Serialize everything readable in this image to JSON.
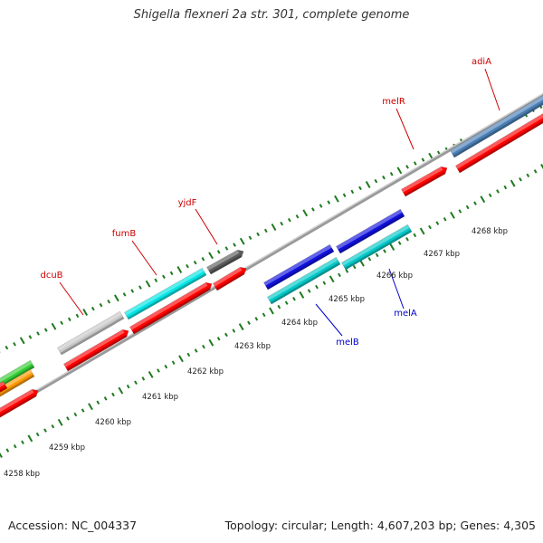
{
  "title": "Shigella flexneri 2a str. 301, complete genome",
  "footer": {
    "accession": "Accession: NC_004337",
    "summary": "Topology: circular; Length: 4,607,203 bp; Genes: 4,305"
  },
  "ruler": {
    "unit": "kbp",
    "labels": [
      "4258 kbp",
      "4259 kbp",
      "4260 kbp",
      "4261 kbp",
      "4262 kbp",
      "4263 kbp",
      "4264 kbp",
      "4265 kbp",
      "4266 kbp",
      "4267 kbp",
      "4268 kbp"
    ]
  },
  "colors": {
    "backbone": "#9a9a9a",
    "tick": "#1e7a1e",
    "ruler_text": "#222222",
    "forward_label": "#cc0000",
    "reverse_label": "#0000cc",
    "cds": "#ff0000"
  },
  "genes_forward": [
    {
      "name": "dcuB",
      "color": "#c8c8c8"
    },
    {
      "name": "fumB",
      "color": "#00e5e5"
    },
    {
      "name": "yjdF",
      "color": "#5a5a5a"
    },
    {
      "name": "melR",
      "color": "#ff0000"
    },
    {
      "name": "adiA",
      "color": "#4a7fb5"
    }
  ],
  "genes_reverse": [
    {
      "name": "melB",
      "color": "#1010dd"
    },
    {
      "name": "melA",
      "color": "#00c8c8"
    }
  ],
  "unlabeled_features": [
    "#33cc33",
    "#ff9900"
  ]
}
